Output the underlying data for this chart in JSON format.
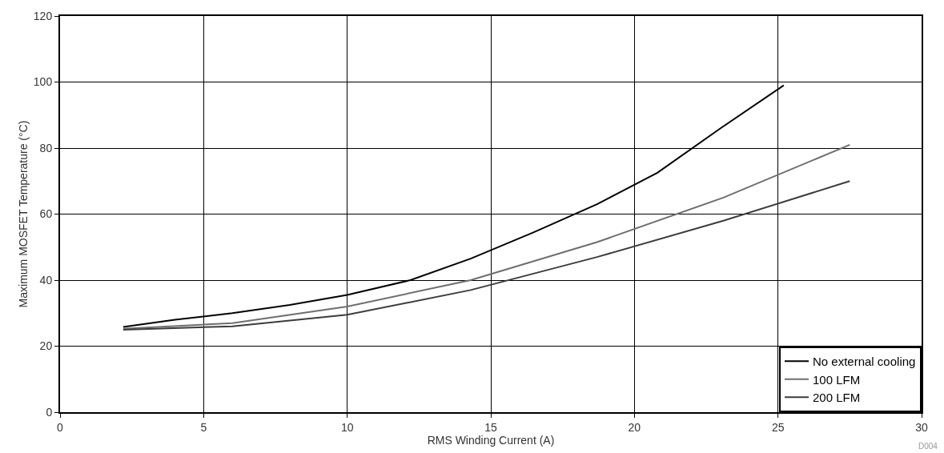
{
  "chart_data": {
    "type": "line",
    "xlabel": "RMS Winding Current (A)",
    "ylabel": "Maximum MOSFET Temperature (°C)",
    "xlim": [
      0,
      30
    ],
    "xticks": [
      0,
      5,
      10,
      15,
      20,
      25,
      30
    ],
    "ylim": [
      0,
      120
    ],
    "yticks": [
      0,
      20,
      40,
      60,
      80,
      100,
      120
    ],
    "grid": true,
    "legend": "bottom right",
    "marker": "none",
    "line_style": "solid",
    "annotations": [
      "D004"
    ],
    "series": [
      {
        "name": "No external cooling",
        "color": "#000000",
        "x": [
          2.2,
          4,
          6,
          8,
          10,
          12.2,
          14.3,
          16.5,
          18.7,
          20.8,
          23,
          25.2
        ],
        "values": [
          25.8,
          28,
          30,
          32.5,
          35.5,
          40,
          46.5,
          54.5,
          63,
          72.5,
          86,
          99
        ]
      },
      {
        "name": "100 LFM",
        "color": "#6e6e6e",
        "x": [
          2.2,
          6,
          10,
          14.3,
          18.7,
          23.1,
          27.5
        ],
        "values": [
          25.3,
          27,
          32,
          40,
          51.5,
          65,
          81
        ]
      },
      {
        "name": "200 LFM",
        "color": "#3c3c3c",
        "x": [
          2.2,
          6,
          10,
          14.3,
          18.7,
          23.1,
          27.5
        ],
        "values": [
          25,
          26,
          29.5,
          37,
          47,
          58,
          70
        ]
      }
    ]
  }
}
